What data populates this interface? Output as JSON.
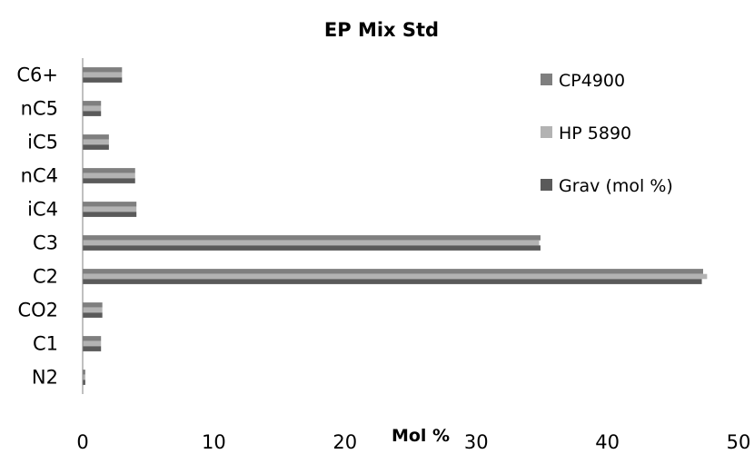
{
  "chart_data": {
    "type": "bar",
    "orientation": "horizontal",
    "title": "EP Mix Std",
    "xlabel": "Mol %",
    "ylabel": "",
    "xlim": [
      0,
      50
    ],
    "xticks": [
      "0",
      "10",
      "20",
      "30",
      "40",
      "50"
    ],
    "categories": [
      "N2",
      "C1",
      "CO2",
      "C2",
      "C3",
      "iC4",
      "nC4",
      "iC5",
      "nC5",
      "C6+"
    ],
    "series": [
      {
        "name": "CP4900",
        "color": "#7f7f7f",
        "values": [
          0.2,
          1.4,
          1.5,
          47.3,
          34.9,
          4.1,
          4.0,
          2.0,
          1.4,
          3.0
        ]
      },
      {
        "name": "HP 5890",
        "color": "#b3b3b3",
        "values": [
          0.2,
          1.4,
          1.5,
          47.6,
          34.8,
          4.1,
          4.0,
          2.0,
          1.4,
          3.0
        ]
      },
      {
        "name": "Grav (mol %)",
        "color": "#5a5a5a",
        "values": [
          0.2,
          1.4,
          1.5,
          47.2,
          34.9,
          4.1,
          4.0,
          2.0,
          1.4,
          3.0
        ]
      }
    ],
    "grid": false,
    "legend_position": "top-right"
  }
}
